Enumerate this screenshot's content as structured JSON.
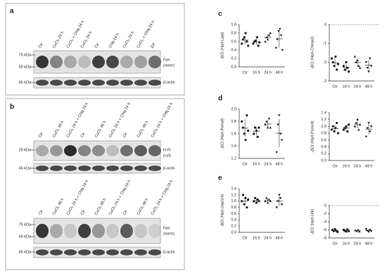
{
  "panels": {
    "a": {
      "label": "a",
      "lanes": [
        "Ctr",
        "CuCl₂ 24 h",
        "CuCl₂ + Chlq 24 h",
        "CuCl₂ 24 h",
        "Ctr",
        "Chlq 24 h",
        "CuCl₂ 24 h",
        "CuCl₂ + Chlq 24 h",
        "EP"
      ],
      "markers": [
        "75 kDa",
        "60 kDa",
        "45 kDa"
      ],
      "targets": [
        "Fpn",
        "(mem)",
        "β-actin"
      ]
    },
    "b": {
      "label": "b",
      "lanes": [
        "Ctr",
        "CuCl₂ 48 h",
        "CuCl₂ 24 h + Chlq 24 h",
        "Ctr",
        "CuCl₂ 48 h",
        "CuCl₂ 24 h + Chlq 24 h",
        "Ctr",
        "CuCl₂ 48 h",
        "CuCl₂ 24 h + Chlq 24 h"
      ],
      "markers_top": [
        "20 kDa",
        "45 kDa"
      ],
      "targets_top": [
        "H-Ft",
        "(cyt)",
        "β-actin"
      ],
      "markers_bottom": [
        "75 kDa",
        "60 kDa",
        "45 kDa"
      ],
      "targets_bottom": [
        "Fpn",
        "(mem)",
        "β-actin"
      ]
    }
  },
  "chart_data": [
    {
      "type": "dot",
      "panel": "c",
      "ylabel": "-ΔCt (Hprt-Lipd)",
      "categories": [
        "Ctr",
        "16 h",
        "24 h",
        "48 h"
      ],
      "values": [
        [
          0.55,
          0.65,
          0.7,
          0.8,
          0.6,
          0.5
        ],
        [
          0.55,
          0.6,
          0.62,
          0.7,
          0.5,
          0.58
        ],
        [
          0.6,
          0.7,
          0.65,
          0.75,
          0.8
        ],
        [
          0.45,
          0.65,
          0.85,
          0.9,
          0.75,
          0.4
        ]
      ],
      "ylim": [
        0,
        1
      ],
      "yticks": [
        {
          "value": 0,
          "label": "0.0"
        },
        0.2,
        0.4,
        0.6,
        0.8,
        {
          "value": 1,
          "label": "1.0"
        }
      ],
      "color": "#222"
    },
    {
      "type": "dot",
      "ylabel": "-ΔCt (Hprt-Chmpd)",
      "categories": [
        "Ctr",
        "16 h",
        "24 h",
        "48 h"
      ],
      "values": [
        [
          -1.8,
          -2.0,
          -2.2,
          -1.7,
          -2.4,
          -2.1
        ],
        [
          -2.2,
          -2.4,
          -2.0,
          -2.3,
          -2.5
        ],
        [
          -1.7,
          -2.0,
          -1.9,
          -2.2,
          -2.3
        ],
        [
          -2.0,
          -2.3,
          -2.5,
          -1.8,
          -2.2
        ]
      ],
      "ylim": [
        -3,
        0
      ],
      "yticks": [
        0,
        -1,
        -2,
        -3
      ],
      "zero_line": true,
      "color": "#222"
    },
    {
      "type": "dot",
      "panel": "d",
      "ylabel": "-ΔCt (Hprt-Psmaf)",
      "categories": [
        "Ctr",
        "16 h",
        "24 h",
        "48 h"
      ],
      "values": [
        [
          1.8,
          1.7,
          1.6,
          1.5,
          1.9,
          1.65
        ],
        [
          1.6,
          1.7,
          1.65,
          1.55,
          1.7
        ],
        [
          1.75,
          1.8,
          1.7,
          1.85,
          1.7
        ],
        [
          1.3,
          1.75,
          1.9,
          1.6,
          1.5
        ]
      ],
      "ylim": [
        1.2,
        2
      ],
      "yticks": [
        1.2,
        1.4,
        1.6,
        1.8,
        {
          "value": 2,
          "label": "2.0"
        }
      ],
      "color": "#222"
    },
    {
      "type": "dot",
      "ylabel": "-ΔCt (Hprt-Psmc4)",
      "categories": [
        "Ctr",
        "16 h",
        "24 h",
        "48 h"
      ],
      "values": [
        [
          0.9,
          1.0,
          0.85,
          0.95,
          1.1,
          0.8
        ],
        [
          0.9,
          0.95,
          1.0,
          0.85,
          1.05
        ],
        [
          1.0,
          1.1,
          1.2,
          0.9,
          1.05
        ],
        [
          0.7,
          0.95,
          1.1,
          0.85,
          1.0
        ]
      ],
      "ylim": [
        0,
        1.4
      ],
      "yticks": [
        {
          "value": 0,
          "label": "0.0"
        },
        0.2,
        0.4,
        0.6,
        0.8,
        {
          "value": 1,
          "label": "1.0"
        },
        1.2,
        1.4
      ],
      "color": "#222"
    },
    {
      "type": "dot",
      "panel": "e",
      "ylabel": "-ΔCt (Hprt-Uap1r4)",
      "categories": [
        "Ctr",
        "16 h",
        "24 h",
        "48 h"
      ],
      "values": [
        [
          1.0,
          1.2,
          0.9,
          1.1,
          0.8,
          1.05
        ],
        [
          1.0,
          1.1,
          0.95,
          1.05,
          1.0
        ],
        [
          1.0,
          1.1,
          0.95,
          1.05,
          1.0
        ],
        [
          0.8,
          1.0,
          1.2,
          1.1,
          0.9
        ]
      ],
      "ylim": [
        0,
        1.4
      ],
      "yticks": [
        {
          "value": 0,
          "label": "0.0"
        },
        0.2,
        0.4,
        0.6,
        0.8,
        {
          "value": 1,
          "label": "1.0"
        },
        1.2,
        1.4
      ],
      "color": "#222"
    },
    {
      "type": "dot",
      "ylabel": "-ΔCt (Hprt-Ulk)",
      "categories": [
        "Ctr",
        "16 h",
        "24 h",
        "48 h"
      ],
      "values": [
        [
          -6.0,
          -6.3,
          -5.8,
          -6.2,
          -6.5
        ],
        [
          -6.0,
          -6.2,
          -6.4,
          -5.9,
          -6.3
        ],
        [
          -6.1,
          -6.3,
          -6.0,
          -6.4
        ],
        [
          -5.8,
          -6.2,
          -6.5,
          -6.0,
          -6.3
        ]
      ],
      "ylim": [
        -8,
        0
      ],
      "yticks": [
        0,
        -2,
        -4,
        -6,
        -8
      ],
      "zero_line": true,
      "color": "#222"
    }
  ]
}
